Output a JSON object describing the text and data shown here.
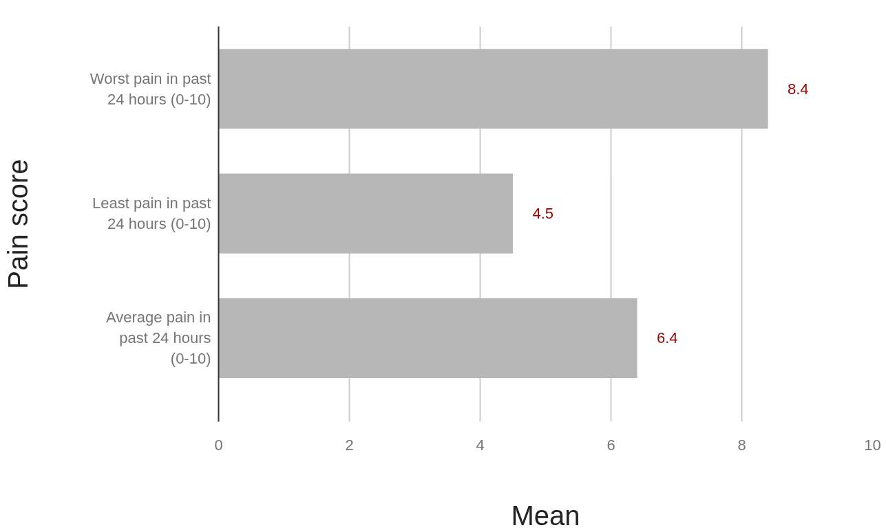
{
  "chart_data": {
    "type": "bar",
    "orientation": "horizontal",
    "xlabel": "Mean",
    "ylabel": "Pain score",
    "categories": [
      "Worst pain in past\n24 hours (0-10)",
      "Least pain in past\n24 hours (0-10)",
      "Average pain in\npast 24 hours\n(0-10)"
    ],
    "values": [
      8.4,
      4.5,
      6.4
    ],
    "color": "#b7b7b7",
    "xlim": [
      0,
      10
    ],
    "xticks": [
      0,
      2,
      4,
      6,
      8,
      10
    ],
    "grid": "x",
    "data_labels": true
  }
}
